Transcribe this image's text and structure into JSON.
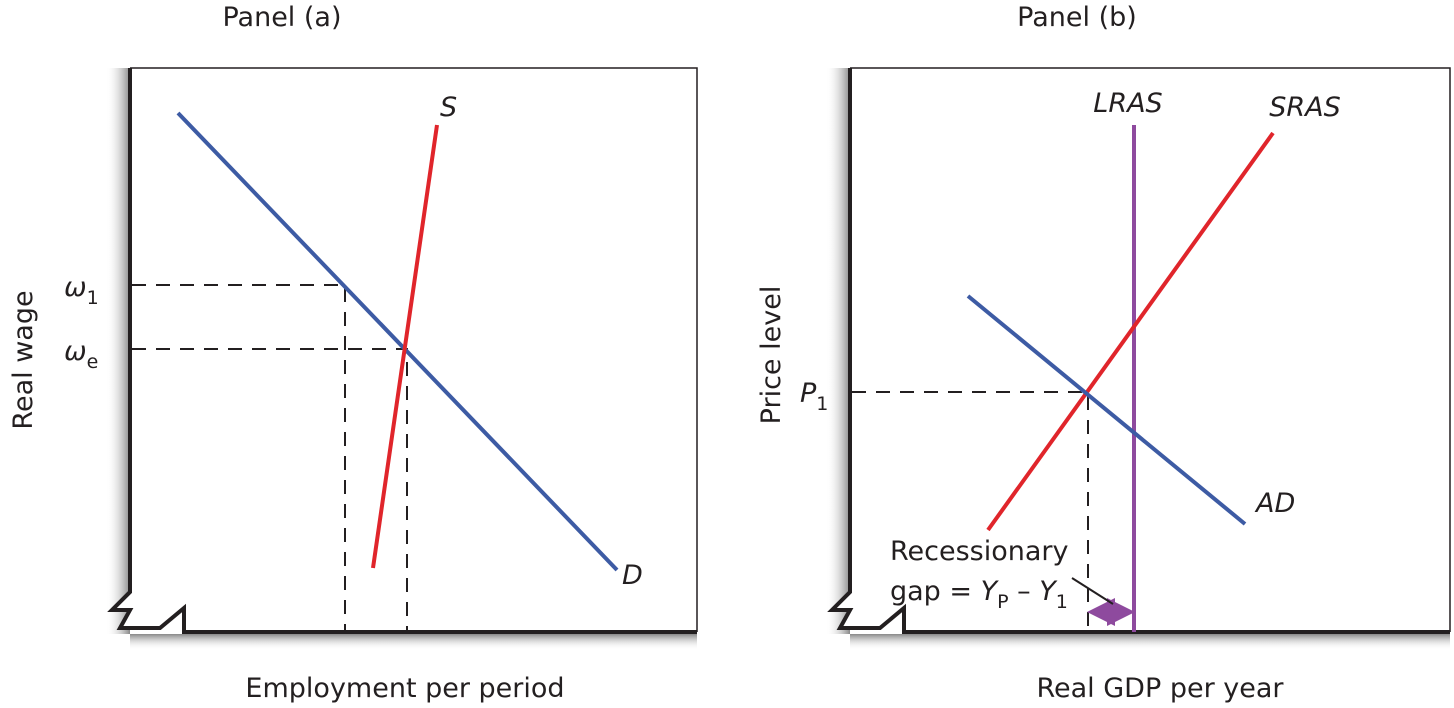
{
  "panel_a": {
    "title": "Panel (a)",
    "y_axis_label": "Real wage",
    "x_axis_label": "Employment per period",
    "supply_label": "S",
    "demand_label": "D",
    "wage_1_symbol": "ω",
    "wage_1_sub": "1",
    "wage_e_symbol": "ω",
    "wage_e_sub": "e"
  },
  "panel_b": {
    "title": "Panel (b)",
    "y_axis_label": "Price level",
    "x_axis_label": "Real GDP per year",
    "lras_label": "LRAS",
    "sras_label": "SRAS",
    "ad_label": "AD",
    "price_symbol": "P",
    "price_sub": "1",
    "gap_line1": "Recessionary",
    "gap_prefix": "gap = ",
    "gap_yp": "Y",
    "gap_yp_sub": "P",
    "gap_minus": " – ",
    "gap_y1": "Y",
    "gap_y1_sub": "1"
  },
  "colors": {
    "demand": "#3d5ba4",
    "supply": "#e0252b",
    "lras": "#8e4a9e",
    "axis": "#231f20"
  }
}
